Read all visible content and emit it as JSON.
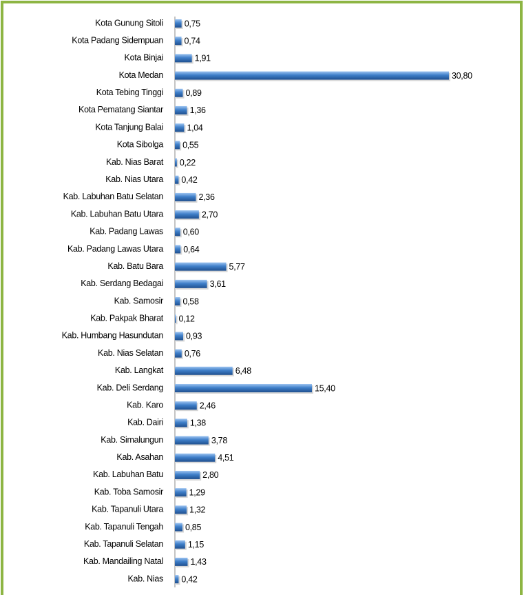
{
  "chart_data": {
    "type": "bar",
    "orientation": "horizontal",
    "color": "#3f7fc9",
    "categories": [
      "Kota Gunung Sitoli",
      "Kota Padang Sidempuan",
      "Kota Binjai",
      "Kota Medan",
      "Kota Tebing Tinggi",
      "Kota Pematang Siantar",
      "Kota Tanjung Balai",
      "Kota Sibolga",
      "Kab. Nias Barat",
      "Kab. Nias Utara",
      "Kab. Labuhan Batu Selatan",
      "Kab. Labuhan Batu Utara",
      "Kab. Padang Lawas",
      "Kab. Padang Lawas Utara",
      "Kab. Batu Bara",
      "Kab. Serdang Bedagai",
      "Kab. Samosir",
      "Kab. Pakpak Bharat",
      "Kab. Humbang Hasundutan",
      "Kab. Nias Selatan",
      "Kab. Langkat",
      "Kab. Deli Serdang",
      "Kab. Karo",
      "Kab. Dairi",
      "Kab. Simalungun",
      "Kab. Asahan",
      "Kab. Labuhan Batu",
      "Kab. Toba Samosir",
      "Kab. Tapanuli Utara",
      "Kab. Tapanuli Tengah",
      "Kab. Tapanuli Selatan",
      "Kab. Mandailing Natal",
      "Kab. Nias"
    ],
    "values": [
      0.75,
      0.74,
      1.91,
      30.8,
      0.89,
      1.36,
      1.04,
      0.55,
      0.22,
      0.42,
      2.36,
      2.7,
      0.6,
      0.64,
      5.77,
      3.61,
      0.58,
      0.12,
      0.93,
      0.76,
      6.48,
      15.4,
      2.46,
      1.38,
      3.78,
      4.51,
      2.8,
      1.29,
      1.32,
      0.85,
      1.15,
      1.43,
      0.42
    ],
    "value_labels": [
      "0,75",
      "0,74",
      "1,91",
      "30,80",
      "0,89",
      "1,36",
      "1,04",
      "0,55",
      "0,22",
      "0,42",
      "2,36",
      "2,70",
      "0,60",
      "0,64",
      "5,77",
      "3,61",
      "0,58",
      "0,12",
      "0,93",
      "0,76",
      "6,48",
      "15,40",
      "2,46",
      "1,38",
      "3,78",
      "4,51",
      "2,80",
      "1,29",
      "1,32",
      "0,85",
      "1,15",
      "1,43",
      "0,42"
    ]
  }
}
